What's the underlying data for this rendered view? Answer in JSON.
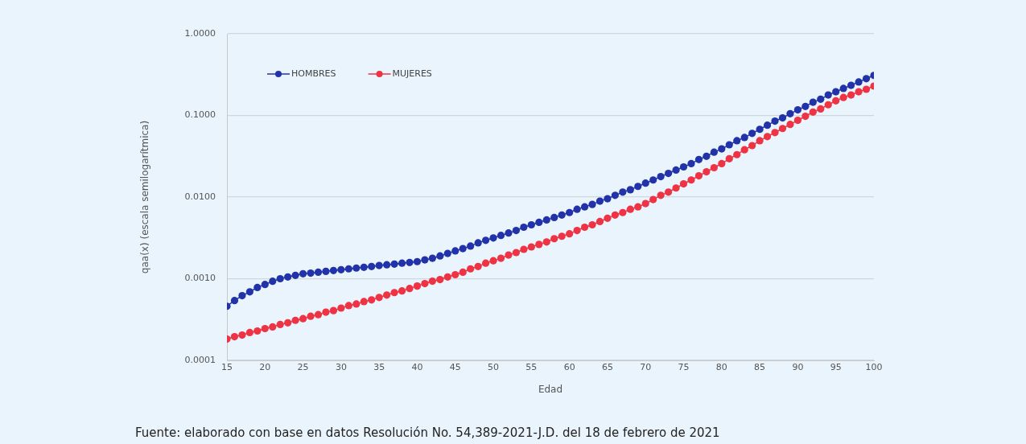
{
  "chart_data": {
    "type": "line",
    "xlabel": "Edad",
    "ylabel": "qaa(x) (escala semilogarítmica)",
    "x": [
      15,
      16,
      17,
      18,
      19,
      20,
      21,
      22,
      23,
      24,
      25,
      26,
      27,
      28,
      29,
      30,
      31,
      32,
      33,
      34,
      35,
      36,
      37,
      38,
      39,
      40,
      41,
      42,
      43,
      44,
      45,
      46,
      47,
      48,
      49,
      50,
      51,
      52,
      53,
      54,
      55,
      56,
      57,
      58,
      59,
      60,
      61,
      62,
      63,
      64,
      65,
      66,
      67,
      68,
      69,
      70,
      71,
      72,
      73,
      74,
      75,
      76,
      77,
      78,
      79,
      80,
      81,
      82,
      83,
      84,
      85,
      86,
      87,
      88,
      89,
      90,
      91,
      92,
      93,
      94,
      95,
      96,
      97,
      98,
      99,
      100
    ],
    "series": [
      {
        "name": "HOMBRES",
        "color": "#2233aa",
        "values": [
          0.00046,
          0.00054,
          0.00062,
          0.00069,
          0.00078,
          0.00085,
          0.00093,
          0.001,
          0.00105,
          0.0011,
          0.00115,
          0.00117,
          0.0012,
          0.00123,
          0.00126,
          0.00129,
          0.00132,
          0.00135,
          0.00138,
          0.00141,
          0.00145,
          0.00148,
          0.00151,
          0.00155,
          0.00158,
          0.00162,
          0.0017,
          0.00178,
          0.0019,
          0.00204,
          0.00219,
          0.00234,
          0.00251,
          0.00275,
          0.00295,
          0.00316,
          0.00339,
          0.00363,
          0.00389,
          0.00427,
          0.00457,
          0.0049,
          0.00525,
          0.00562,
          0.00603,
          0.00646,
          0.00708,
          0.00759,
          0.00813,
          0.00891,
          0.00955,
          0.0105,
          0.0115,
          0.0123,
          0.0135,
          0.0148,
          0.0162,
          0.0178,
          0.0195,
          0.0214,
          0.0234,
          0.0257,
          0.0288,
          0.0316,
          0.0355,
          0.0389,
          0.0437,
          0.049,
          0.0537,
          0.0603,
          0.0676,
          0.0759,
          0.0851,
          0.0933,
          0.105,
          0.117,
          0.129,
          0.145,
          0.158,
          0.178,
          0.195,
          0.214,
          0.234,
          0.257,
          0.282,
          0.309
        ]
      },
      {
        "name": "MUJERES",
        "color": "#ee3344",
        "values": [
          0.000182,
          0.000195,
          0.000204,
          0.000219,
          0.000229,
          0.000245,
          0.000257,
          0.000275,
          0.000288,
          0.000309,
          0.000324,
          0.000347,
          0.000363,
          0.000389,
          0.000407,
          0.000437,
          0.000468,
          0.00049,
          0.000525,
          0.00055,
          0.000589,
          0.000631,
          0.000676,
          0.000708,
          0.000759,
          0.000813,
          0.000871,
          0.000933,
          0.000977,
          0.00105,
          0.00112,
          0.0012,
          0.00132,
          0.00141,
          0.00155,
          0.00166,
          0.00178,
          0.00195,
          0.00209,
          0.00229,
          0.00245,
          0.00263,
          0.00282,
          0.00309,
          0.00331,
          0.00355,
          0.00389,
          0.00427,
          0.00457,
          0.00501,
          0.0055,
          0.00603,
          0.00646,
          0.00708,
          0.00759,
          0.00832,
          0.00933,
          0.0105,
          0.0115,
          0.0129,
          0.0145,
          0.0162,
          0.0182,
          0.0204,
          0.0229,
          0.0257,
          0.0295,
          0.0331,
          0.038,
          0.0427,
          0.049,
          0.055,
          0.0617,
          0.0692,
          0.0776,
          0.0871,
          0.0977,
          0.11,
          0.12,
          0.135,
          0.151,
          0.166,
          0.178,
          0.195,
          0.209,
          0.229
        ]
      }
    ],
    "xlim": [
      15,
      100
    ],
    "xticks": [
      15,
      20,
      25,
      30,
      35,
      40,
      45,
      50,
      55,
      60,
      65,
      70,
      75,
      80,
      85,
      90,
      95,
      100
    ],
    "ylim": [
      0.0001,
      1
    ],
    "yticks": [
      {
        "value": 0.0001,
        "label": "0.0001"
      },
      {
        "value": 0.001,
        "label": "0.0010"
      },
      {
        "value": 0.01,
        "label": "0.0100"
      },
      {
        "value": 0.1,
        "label": "0.1000"
      },
      {
        "value": 1,
        "label": "1.0000"
      }
    ],
    "log": "y",
    "grid": "y",
    "legend": "top left",
    "marker": "circle",
    "line_style": "solid",
    "annotations": [
      "Fuente: elaborado con base en datos Resolución No. 54,389-2021-J.D. del 18 de febrero de 2021"
    ]
  }
}
